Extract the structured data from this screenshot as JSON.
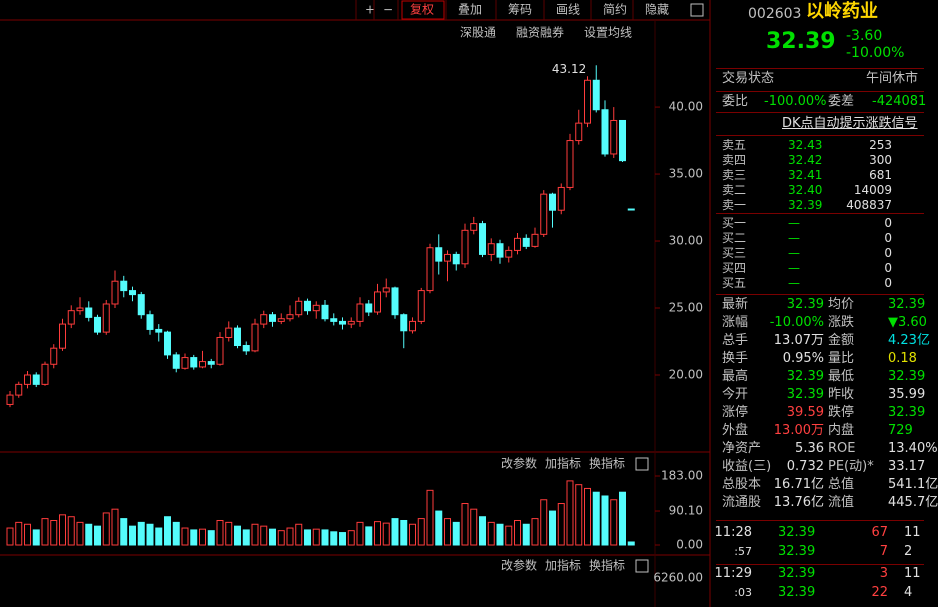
{
  "toolbar": {
    "buttons": [
      "+",
      "−",
      "复权",
      "叠加",
      "筹码",
      "画线",
      "简约",
      "隐藏"
    ]
  },
  "chart": {
    "links": [
      "深股通",
      "融资融券",
      "设置均线"
    ],
    "peak_label": "43.12",
    "ylim": [
      14.4,
      46.5
    ],
    "yticks": [
      {
        "value": 20,
        "label": "20.00"
      },
      {
        "value": 25,
        "label": "25.00"
      },
      {
        "value": 30,
        "label": "30.00"
      },
      {
        "value": 35,
        "label": "35.00"
      },
      {
        "value": 40,
        "label": "40.00"
      }
    ],
    "candles": [
      [
        17.8,
        18.8,
        17.6,
        18.5
      ],
      [
        18.5,
        19.5,
        18.3,
        19.3
      ],
      [
        19.3,
        20.3,
        19.0,
        20.0
      ],
      [
        20.0,
        20.2,
        19.1,
        19.3
      ],
      [
        19.3,
        21.0,
        19.2,
        20.8
      ],
      [
        20.8,
        22.3,
        20.5,
        22.0
      ],
      [
        22.0,
        24.2,
        21.8,
        23.8
      ],
      [
        23.8,
        25.2,
        23.5,
        24.8
      ],
      [
        24.8,
        25.8,
        24.5,
        25.0
      ],
      [
        25.0,
        25.5,
        24.0,
        24.3
      ],
      [
        24.3,
        24.5,
        23.0,
        23.2
      ],
      [
        23.2,
        25.6,
        23.0,
        25.3
      ],
      [
        25.3,
        27.8,
        25.0,
        27.0
      ],
      [
        27.0,
        27.4,
        25.8,
        26.3
      ],
      [
        26.3,
        26.6,
        25.5,
        26.0
      ],
      [
        26.0,
        26.2,
        24.2,
        24.5
      ],
      [
        24.5,
        24.8,
        23.0,
        23.4
      ],
      [
        23.4,
        23.8,
        22.5,
        23.2
      ],
      [
        23.2,
        23.3,
        21.2,
        21.5
      ],
      [
        21.5,
        21.7,
        20.2,
        20.5
      ],
      [
        20.5,
        21.6,
        20.4,
        21.3
      ],
      [
        21.3,
        21.5,
        20.4,
        20.6
      ],
      [
        20.6,
        21.8,
        20.5,
        21.0
      ],
      [
        21.0,
        21.2,
        20.5,
        20.8
      ],
      [
        20.8,
        23.2,
        20.7,
        22.8
      ],
      [
        22.8,
        24.0,
        22.5,
        23.5
      ],
      [
        23.5,
        23.7,
        22.0,
        22.2
      ],
      [
        22.2,
        22.5,
        21.5,
        21.8
      ],
      [
        21.8,
        24.2,
        21.7,
        23.8
      ],
      [
        23.8,
        24.8,
        23.5,
        24.5
      ],
      [
        24.5,
        24.7,
        23.6,
        24.0
      ],
      [
        24.0,
        24.6,
        23.8,
        24.2
      ],
      [
        24.2,
        25.2,
        24.0,
        24.5
      ],
      [
        24.5,
        25.8,
        24.3,
        25.5
      ],
      [
        25.5,
        25.7,
        24.5,
        24.8
      ],
      [
        24.8,
        25.5,
        24.2,
        25.2
      ],
      [
        25.2,
        25.6,
        24.0,
        24.2
      ],
      [
        24.2,
        24.6,
        23.7,
        24.0
      ],
      [
        24.0,
        24.3,
        23.4,
        23.8
      ],
      [
        23.8,
        24.3,
        23.5,
        24.0
      ],
      [
        24.0,
        25.8,
        23.6,
        25.3
      ],
      [
        25.3,
        25.6,
        24.4,
        24.7
      ],
      [
        24.7,
        26.8,
        24.5,
        26.2
      ],
      [
        26.2,
        27.2,
        25.8,
        26.5
      ],
      [
        26.5,
        26.6,
        24.2,
        24.5
      ],
      [
        24.5,
        24.6,
        22.0,
        23.3
      ],
      [
        23.3,
        24.3,
        23.1,
        24.0
      ],
      [
        24.0,
        26.5,
        23.8,
        26.3
      ],
      [
        26.3,
        29.8,
        26.1,
        29.5
      ],
      [
        29.5,
        30.5,
        27.5,
        28.5
      ],
      [
        28.5,
        29.3,
        27.0,
        29.0
      ],
      [
        29.0,
        29.2,
        27.8,
        28.3
      ],
      [
        28.3,
        31.3,
        28.0,
        30.8
      ],
      [
        30.8,
        31.8,
        30.5,
        31.3
      ],
      [
        31.3,
        31.5,
        28.8,
        29.0
      ],
      [
        29.0,
        30.2,
        28.5,
        29.8
      ],
      [
        29.8,
        30.1,
        28.3,
        28.8
      ],
      [
        28.8,
        29.6,
        28.4,
        29.3
      ],
      [
        29.3,
        30.6,
        29.0,
        30.2
      ],
      [
        30.2,
        30.5,
        29.4,
        29.6
      ],
      [
        29.6,
        31.0,
        29.5,
        30.5
      ],
      [
        30.5,
        33.8,
        30.3,
        33.5
      ],
      [
        33.5,
        33.6,
        31.0,
        32.3
      ],
      [
        32.3,
        34.3,
        32.0,
        34.0
      ],
      [
        34.0,
        38.0,
        33.8,
        37.5
      ],
      [
        37.5,
        39.8,
        37.2,
        38.8
      ],
      [
        38.8,
        42.3,
        38.5,
        42.0
      ],
      [
        42.0,
        43.12,
        39.6,
        39.8
      ],
      [
        39.8,
        40.5,
        36.3,
        36.5
      ],
      [
        36.5,
        40.0,
        36.2,
        39.0
      ],
      [
        39.0,
        39.0,
        35.9,
        36.0
      ],
      [
        32.39,
        32.39,
        32.39,
        32.39
      ]
    ],
    "up_color": "#ff3c3c",
    "down_color": "#54fcfc"
  },
  "volume": {
    "tools": [
      "改参数",
      "加指标",
      "换指标"
    ],
    "ylim": [
      0,
      183
    ],
    "yticks": [
      {
        "value": 0,
        "label": "0.00"
      },
      {
        "value": 90.1,
        "label": "90.10"
      },
      {
        "value": 183,
        "label": "183.00"
      }
    ],
    "values": [
      45,
      60,
      55,
      40,
      70,
      65,
      80,
      75,
      60,
      55,
      50,
      85,
      95,
      70,
      50,
      60,
      55,
      45,
      75,
      60,
      45,
      40,
      42,
      38,
      65,
      60,
      50,
      40,
      55,
      50,
      42,
      38,
      45,
      55,
      40,
      42,
      40,
      35,
      33,
      38,
      60,
      48,
      62,
      58,
      70,
      65,
      55,
      70,
      145,
      90,
      70,
      60,
      110,
      95,
      75,
      60,
      55,
      50,
      65,
      55,
      70,
      120,
      90,
      110,
      170,
      160,
      150,
      140,
      130,
      120,
      140,
      8
    ]
  },
  "indicator": {
    "tools": [
      "改参数",
      "加指标",
      "换指标"
    ],
    "tick_label": "6260.00"
  },
  "quote": {
    "code": "002603",
    "name": "以岭药业",
    "price": "32.39",
    "change": "-3.60",
    "pct": "-10.00%"
  },
  "status": [
    "交易状态",
    "午间休市"
  ],
  "ratio": [
    "委比",
    "-100.00%",
    "委差",
    "-424081"
  ],
  "dk": "DK点自动提示涨跌信号",
  "asks": [
    [
      "卖五",
      "32.43",
      "253"
    ],
    [
      "卖四",
      "32.42",
      "300"
    ],
    [
      "卖三",
      "32.41",
      "681"
    ],
    [
      "卖二",
      "32.40",
      "14009"
    ],
    [
      "卖一",
      "32.39",
      "408837"
    ]
  ],
  "bids": [
    [
      "买一",
      "—",
      "0"
    ],
    [
      "买二",
      "—",
      "0"
    ],
    [
      "买三",
      "—",
      "0"
    ],
    [
      "买四",
      "—",
      "0"
    ],
    [
      "买五",
      "—",
      "0"
    ]
  ],
  "stats": [
    [
      "最新",
      "32.39",
      "均价",
      "32.39"
    ],
    [
      "涨幅",
      "-10.00%",
      "涨跌",
      "▼3.60"
    ],
    [
      "总手",
      "13.07万",
      "金额",
      "4.23亿"
    ],
    [
      "换手",
      "0.95%",
      "量比",
      "0.18"
    ],
    [
      "最高",
      "32.39",
      "最低",
      "32.39"
    ],
    [
      "今开",
      "32.39",
      "昨收",
      "35.99"
    ],
    [
      "涨停",
      "39.59",
      "跌停",
      "32.39"
    ],
    [
      "外盘",
      "13.00万",
      "内盘",
      "729"
    ],
    [
      "净资产",
      "5.36",
      "ROE",
      "13.40%"
    ],
    [
      "收益(三)",
      "0.732",
      "PE(动)*",
      "33.17"
    ],
    [
      "总股本",
      "16.71亿",
      "总值",
      "541.1亿"
    ],
    [
      "流通股",
      "13.76亿",
      "流值",
      "445.7亿"
    ]
  ],
  "stat_colors": [
    [
      "#00e000",
      "#00e000"
    ],
    [
      "#00e000",
      "#00e000"
    ],
    [
      "#e0e0e0",
      "#00e0e0"
    ],
    [
      "#e0e0e0",
      "#e0e000"
    ],
    [
      "#00e000",
      "#00e000"
    ],
    [
      "#00e000",
      "#e0e0e0"
    ],
    [
      "#ff4040",
      "#00e000"
    ],
    [
      "#ff4040",
      "#00e000"
    ],
    [
      "#e0e0e0",
      "#e0e0e0"
    ],
    [
      "#e0e0e0",
      "#e0e0e0"
    ],
    [
      "#e0e0e0",
      "#e0e0e0"
    ],
    [
      "#e0e0e0",
      "#e0e0e0"
    ]
  ],
  "trades": [
    [
      "11:28",
      "32.39",
      "67",
      "11"
    ],
    [
      ":57",
      "32.39",
      "7",
      "2"
    ],
    [
      "11:29",
      "32.39",
      "3",
      "11"
    ],
    [
      ":03",
      "32.39",
      "22",
      "4"
    ]
  ]
}
